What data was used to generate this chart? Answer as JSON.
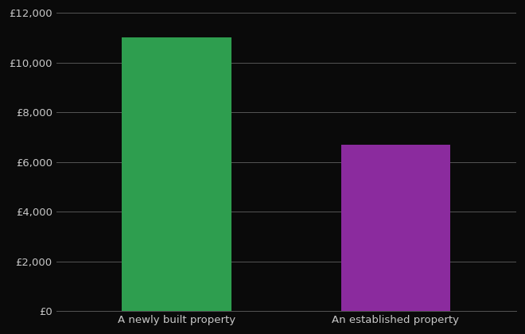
{
  "categories": [
    "A newly built property",
    "An established property"
  ],
  "values": [
    11000,
    6700
  ],
  "bar_colors": [
    "#2e9e4f",
    "#8b2b9e"
  ],
  "background_color": "#0a0a0a",
  "text_color": "#c8c8c8",
  "grid_color": "#555555",
  "ylim": [
    0,
    12000
  ],
  "ytick_step": 2000,
  "figsize": [
    6.6,
    4.2
  ],
  "dpi": 100
}
